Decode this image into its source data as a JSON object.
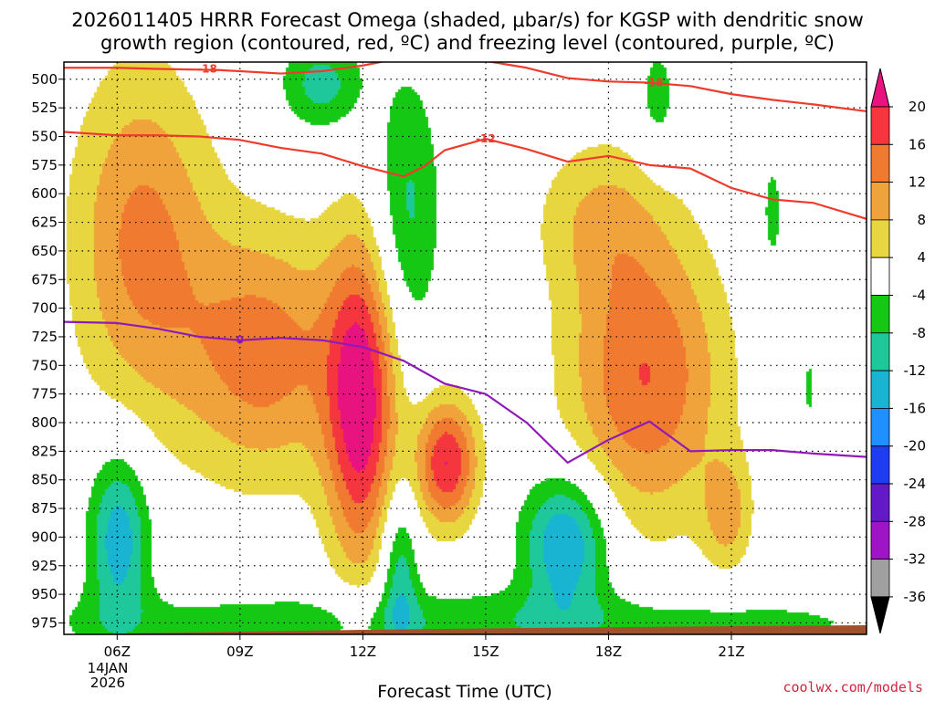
{
  "chart_data": {
    "type": "contour",
    "title_line1": "2026011405 HRRR Forecast Omega (shaded, μbar/s) for KGSP with dendritic snow",
    "title_line2": "growth region (contoured, red, ºC) and freezing level (contoured, purple, ºC)",
    "xlabel": "Forecast Time (UTC)",
    "credit": "coolwx.com/models",
    "date_line1": "14JAN",
    "date_line2": "2026",
    "x_range_hours": [
      4.7,
      24.3
    ],
    "y_range_hpa": [
      485,
      985
    ],
    "x_ticks": [
      {
        "hour": 6,
        "label": "06Z"
      },
      {
        "hour": 9,
        "label": "09Z"
      },
      {
        "hour": 12,
        "label": "12Z"
      },
      {
        "hour": 15,
        "label": "15Z"
      },
      {
        "hour": 18,
        "label": "18Z"
      },
      {
        "hour": 21,
        "label": "21Z"
      }
    ],
    "y_ticks": [
      500,
      525,
      550,
      575,
      600,
      625,
      650,
      675,
      700,
      725,
      750,
      775,
      800,
      825,
      850,
      875,
      900,
      925,
      950,
      975
    ],
    "colorbar": {
      "labels": [
        "20",
        "16",
        "12",
        "8",
        "4",
        "-4",
        "-8",
        "-12",
        "-16",
        "-20",
        "-24",
        "-28",
        "-32",
        "-36"
      ],
      "top_color": "#e8137f",
      "bins": [
        {
          "range": [
            16,
            20
          ],
          "color": "#f5363f"
        },
        {
          "range": [
            12,
            16
          ],
          "color": "#f07a30"
        },
        {
          "range": [
            8,
            12
          ],
          "color": "#f0a33a"
        },
        {
          "range": [
            4,
            8
          ],
          "color": "#e8d640"
        },
        {
          "range": [
            -4,
            4
          ],
          "color": "#ffffff"
        },
        {
          "range": [
            -8,
            -4
          ],
          "color": "#14c814"
        },
        {
          "range": [
            -12,
            -8
          ],
          "color": "#1ec89b"
        },
        {
          "range": [
            -16,
            -12
          ],
          "color": "#19b4d2"
        },
        {
          "range": [
            -20,
            -16
          ],
          "color": "#1e90ff"
        },
        {
          "range": [
            -24,
            -20
          ],
          "color": "#1e3cf0"
        },
        {
          "range": [
            -28,
            -24
          ],
          "color": "#6419c8"
        },
        {
          "range": [
            -32,
            -28
          ],
          "color": "#a014c8"
        },
        {
          "range": [
            -36,
            -32
          ],
          "color": "#a0a0a0"
        }
      ],
      "bottom_color": "#000000"
    },
    "omega_features": [
      {
        "name": "rising-motion-06z",
        "hour": 6.6,
        "hpa": 640,
        "rx_h": 1.7,
        "ry_hpa": 150,
        "peak": 13
      },
      {
        "name": "rising-motion-09z",
        "hour": 9.6,
        "hpa": 740,
        "rx_h": 2.0,
        "ry_hpa": 110,
        "peak": 14
      },
      {
        "name": "rising-motion-12z",
        "hour": 11.95,
        "hpa": 785,
        "rx_h": 0.85,
        "ry_hpa": 140,
        "peak": 22
      },
      {
        "name": "rising-motion-14z",
        "hour": 14.05,
        "hpa": 835,
        "rx_h": 0.75,
        "ry_hpa": 55,
        "peak": 20
      },
      {
        "name": "rising-motion-19z",
        "hour": 18.9,
        "hpa": 760,
        "rx_h": 1.9,
        "ry_hpa": 125,
        "peak": 16
      },
      {
        "name": "rising-motion-18z-upper",
        "hour": 17.8,
        "hpa": 620,
        "rx_h": 1.6,
        "ry_hpa": 70,
        "peak": 7
      },
      {
        "name": "rising-motion-21z",
        "hour": 20.9,
        "hpa": 880,
        "rx_h": 0.6,
        "ry_hpa": 50,
        "peak": 9
      },
      {
        "name": "sinking-motion-06z",
        "hour": 6.05,
        "hpa": 900,
        "rx_h": 0.75,
        "ry_hpa": 75,
        "peak": -15
      },
      {
        "name": "sinking-motion-17z",
        "hour": 16.95,
        "hpa": 905,
        "rx_h": 1.05,
        "ry_hpa": 60,
        "peak": -17
      },
      {
        "name": "sinking-motion-13z",
        "hour": 12.9,
        "hpa": 930,
        "rx_h": 0.45,
        "ry_hpa": 70,
        "peak": -11
      },
      {
        "name": "sinking-motion-13z-upper",
        "hour": 13.1,
        "hpa": 615,
        "rx_h": 0.8,
        "ry_hpa": 120,
        "peak": -9
      },
      {
        "name": "sinking-motion-11z-top",
        "hour": 11.0,
        "hpa": 505,
        "rx_h": 1.0,
        "ry_hpa": 40,
        "peak": -10
      },
      {
        "name": "sinking-motion-19z-upper",
        "hour": 19.2,
        "hpa": 520,
        "rx_h": 0.55,
        "ry_hpa": 60,
        "peak": -6
      },
      {
        "name": "sinking-motion-22z",
        "hour": 22.0,
        "hpa": 620,
        "rx_h": 0.4,
        "ry_hpa": 80,
        "peak": -5
      },
      {
        "name": "sinking-motion-22z-lower",
        "hour": 22.9,
        "hpa": 770,
        "rx_h": 0.22,
        "ry_hpa": 40,
        "peak": -5
      },
      {
        "name": "sinking-motion-near-surface",
        "hour": 14.5,
        "hpa": 975,
        "rx_h": 12,
        "ry_hpa": 30,
        "peak": -7
      }
    ],
    "contours": [
      {
        "name": "isotherm-minus18",
        "value": -18,
        "label": "-18",
        "color": "#ef3b2c",
        "points": [
          [
            4.7,
            490
          ],
          [
            6.0,
            490
          ],
          [
            7.0,
            491
          ],
          [
            8.5,
            492
          ],
          [
            10.0,
            495
          ],
          [
            11.0,
            493
          ],
          [
            12.0,
            488
          ],
          [
            13.0,
            481
          ],
          [
            14.0,
            481
          ],
          [
            15.0,
            484
          ],
          [
            16.0,
            490
          ],
          [
            17.0,
            499
          ],
          [
            18.0,
            502
          ],
          [
            19.0,
            503
          ],
          [
            20.0,
            506
          ],
          [
            21.0,
            513
          ],
          [
            22.0,
            518
          ],
          [
            23.0,
            522
          ],
          [
            24.3,
            528
          ]
        ],
        "labels": [
          {
            "hour": 8.2,
            "hpa": 491,
            "text": "-18"
          },
          {
            "hour": 19.1,
            "hpa": 503,
            "text": "-18"
          }
        ]
      },
      {
        "name": "isotherm-minus12",
        "value": -12,
        "label": "-12",
        "color": "#ef3b2c",
        "points": [
          [
            4.7,
            546
          ],
          [
            6.0,
            549
          ],
          [
            7.0,
            549
          ],
          [
            8.0,
            550
          ],
          [
            9.0,
            553
          ],
          [
            10.0,
            560
          ],
          [
            11.0,
            565
          ],
          [
            12.0,
            576
          ],
          [
            13.0,
            585
          ],
          [
            13.5,
            576
          ],
          [
            14.0,
            562
          ],
          [
            15.0,
            552
          ],
          [
            16.0,
            561
          ],
          [
            17.0,
            572
          ],
          [
            18.0,
            567
          ],
          [
            19.0,
            575
          ],
          [
            20.0,
            578
          ],
          [
            21.0,
            595
          ],
          [
            22.0,
            605
          ],
          [
            23.0,
            608
          ],
          [
            24.3,
            622
          ]
        ],
        "labels": [
          {
            "hour": 15.0,
            "hpa": 552,
            "text": "-12"
          }
        ]
      },
      {
        "name": "freezing-level-0c",
        "value": 0,
        "label": "0",
        "color": "#8f1ab8",
        "points": [
          [
            4.7,
            712
          ],
          [
            6.0,
            713
          ],
          [
            7.0,
            718
          ],
          [
            8.0,
            725
          ],
          [
            9.0,
            728
          ],
          [
            10.0,
            726
          ],
          [
            11.0,
            728
          ],
          [
            12.0,
            734
          ],
          [
            13.0,
            746
          ],
          [
            14.0,
            766
          ],
          [
            15.0,
            775
          ],
          [
            16.0,
            800
          ],
          [
            17.0,
            835
          ],
          [
            18.0,
            815
          ],
          [
            19.0,
            799
          ],
          [
            20.0,
            825
          ],
          [
            21.0,
            824
          ],
          [
            22.0,
            824
          ],
          [
            23.0,
            827
          ],
          [
            24.3,
            830
          ]
        ],
        "labels": [
          {
            "hour": 9.0,
            "hpa": 728,
            "text": "0"
          }
        ]
      }
    ],
    "terrain": {
      "color": "#a0522d",
      "surface_hpa": [
        [
          4.7,
          985
        ],
        [
          12.0,
          981
        ],
        [
          17.0,
          979
        ],
        [
          24.3,
          977
        ]
      ]
    }
  }
}
